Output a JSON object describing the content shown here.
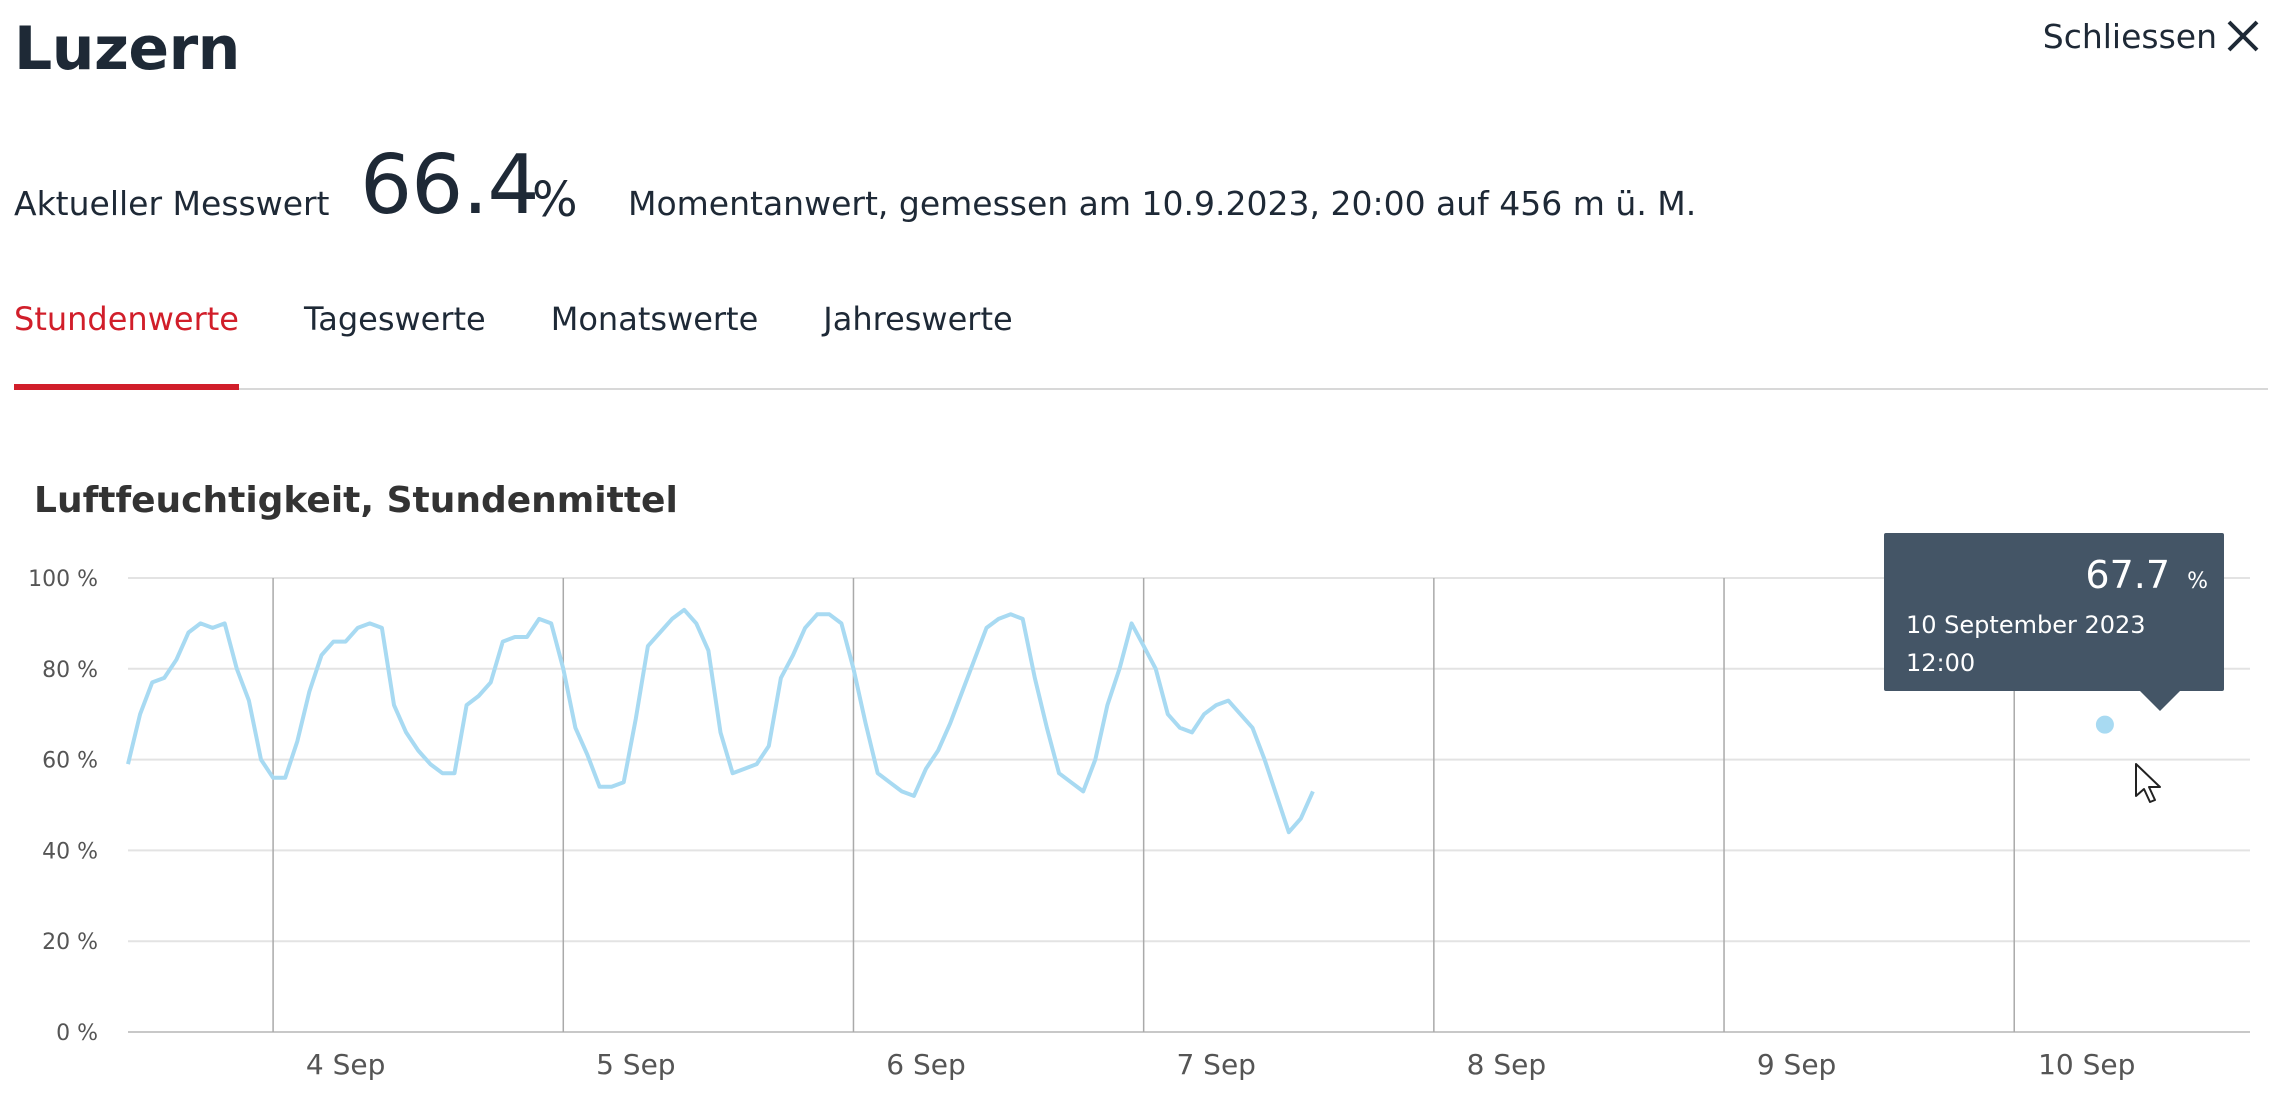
{
  "header": {
    "title": "Luzern",
    "close_label": "Schliessen"
  },
  "measurement": {
    "label": "Aktueller Messwert",
    "value": "66.4",
    "unit": "%",
    "description": "Momentanwert, gemessen am 10.9.2023, 20:00 auf 456 m ü. M."
  },
  "tabs": [
    {
      "label": "Stundenwerte",
      "active": true
    },
    {
      "label": "Tageswerte",
      "active": false
    },
    {
      "label": "Monatswerte",
      "active": false
    },
    {
      "label": "Jahreswerte",
      "active": false
    }
  ],
  "chart_title": "Luftfeuchtigkeit, Stundenmittel",
  "tooltip": {
    "value": "67.7",
    "unit": "%",
    "date": "10 September 2023",
    "time": "12:00"
  },
  "colors": {
    "accent": "#d11e2a",
    "line": "#a8daf2",
    "tooltip_bg": "#445566",
    "grid": "#e3e3e3",
    "day_divider": "#aaaaaa"
  },
  "chart_data": {
    "type": "line",
    "title": "Luftfeuchtigkeit, Stundenmittel",
    "ylim": [
      0,
      100
    ],
    "y_ticks": [
      "0 %",
      "20 %",
      "40 %",
      "60 %",
      "80 %",
      "100 %"
    ],
    "y_tick_values": [
      0,
      20,
      40,
      60,
      80,
      100
    ],
    "x_ticks": [
      "4 Sep",
      "5 Sep",
      "6 Sep",
      "7 Sep",
      "8 Sep",
      "9 Sep",
      "10 Sep"
    ],
    "x_tick_hours": [
      36,
      84,
      132,
      180,
      228,
      276,
      324
    ],
    "day_divider_hours": [
      24,
      72,
      120,
      168,
      216,
      264,
      312
    ],
    "x_range_hours": [
      0,
      351
    ],
    "start": "3 Sep 2023, 21:00",
    "step_hours": 2,
    "grid": true,
    "legend": "none",
    "highlight": {
      "hour": 327,
      "value": 67.7
    },
    "values": [
      59,
      70,
      77,
      78,
      82,
      88,
      90,
      89,
      90,
      80,
      73,
      60,
      56,
      56,
      64,
      75,
      83,
      86,
      86,
      89,
      90,
      89,
      72,
      66,
      62,
      59,
      57,
      57,
      72,
      74,
      77,
      86,
      87,
      87,
      91,
      90,
      80,
      67,
      61,
      54,
      54,
      55,
      69,
      85,
      88,
      91,
      93,
      90,
      84,
      66,
      57,
      58,
      59,
      63,
      78,
      83,
      89,
      92,
      92,
      90,
      80,
      68,
      57,
      55,
      53,
      52,
      58,
      62,
      68,
      75,
      82,
      89,
      91,
      92,
      91,
      78,
      67,
      57,
      55,
      53,
      60,
      72,
      80,
      90,
      85,
      80,
      70,
      67,
      66,
      70,
      72,
      73,
      70,
      67,
      60,
      52,
      44,
      47,
      53
    ]
  }
}
